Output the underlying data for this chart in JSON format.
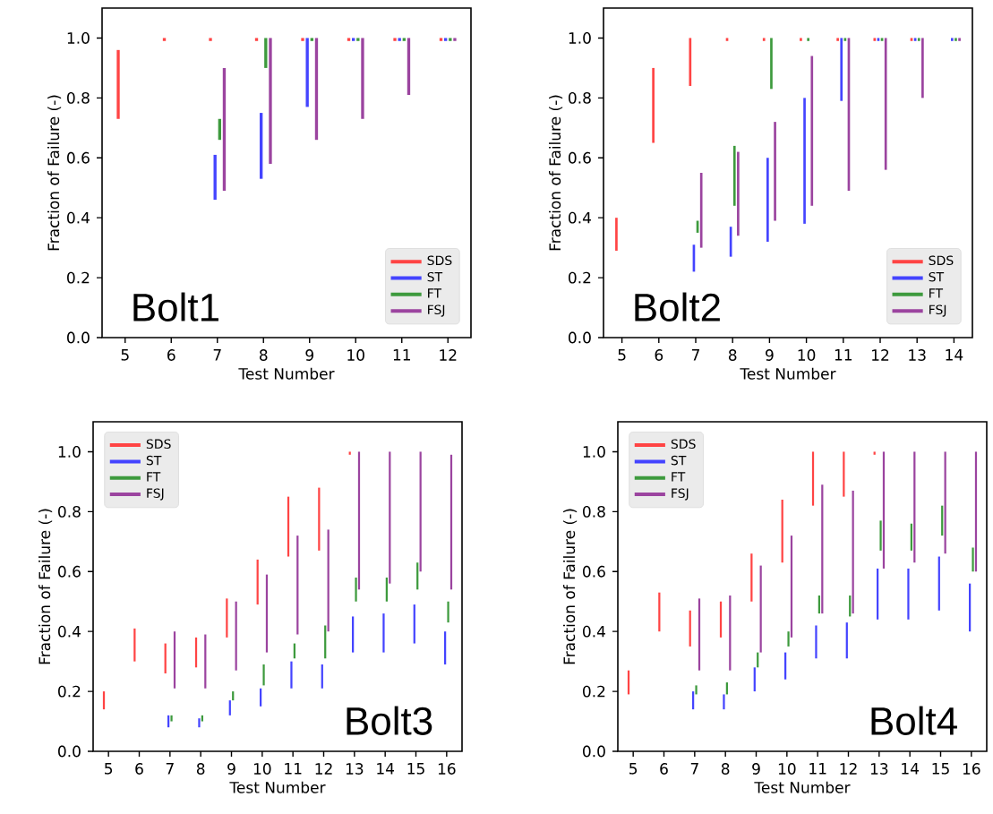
{
  "chart_data": [
    {
      "type": "bar",
      "xlabel": "Test Number",
      "ylabel": "Fraction of Failure (-)",
      "annotations": [
        "Bolt1"
      ],
      "legend": "bottom right",
      "categories": [
        "5",
        "6",
        "7",
        "8",
        "9",
        "10",
        "11",
        "12"
      ],
      "ylim": [
        0,
        1.1
      ],
      "yticks": [
        {
          "value": 0,
          "label": "0.0"
        },
        {
          "value": 0.2,
          "label": "0.2"
        },
        {
          "value": 0.4,
          "label": "0.4"
        },
        {
          "value": 0.6,
          "label": "0.6"
        },
        {
          "value": 0.8,
          "label": "0.8"
        },
        {
          "value": 1,
          "label": "1.0"
        }
      ],
      "series": [
        {
          "name": "SDS",
          "color": "#ff4444",
          "base": [
            0.73,
            0.99,
            0.99,
            0.99,
            0.99,
            0.99,
            0.99,
            0.99
          ],
          "values": [
            0.23,
            0.01,
            0.01,
            0.01,
            0.01,
            0.01,
            0.01,
            0.01
          ]
        },
        {
          "name": "ST",
          "color": "#4444ff",
          "base": [
            null,
            null,
            0.46,
            0.53,
            0.77,
            0.99,
            0.99,
            0.99
          ],
          "values": [
            null,
            null,
            0.15,
            0.22,
            0.23,
            0.01,
            0.01,
            0.01
          ]
        },
        {
          "name": "FT",
          "color": "#3d9a3d",
          "base": [
            null,
            null,
            0.66,
            0.9,
            0.99,
            0.99,
            0.99,
            0.99
          ],
          "values": [
            null,
            null,
            0.07,
            0.1,
            0.01,
            0.01,
            0.01,
            0.01
          ]
        },
        {
          "name": "FSJ",
          "color": "#9b449f",
          "base": [
            null,
            null,
            0.49,
            0.58,
            0.66,
            0.73,
            0.81,
            0.99
          ],
          "values": [
            null,
            null,
            0.41,
            0.42,
            0.34,
            0.27,
            0.19,
            0.01
          ]
        }
      ]
    },
    {
      "type": "bar",
      "xlabel": "Test Number",
      "ylabel": "Fraction of Failure (-)",
      "annotations": [
        "Bolt2"
      ],
      "legend": "bottom right",
      "categories": [
        "5",
        "6",
        "7",
        "8",
        "9",
        "10",
        "11",
        "12",
        "13",
        "14"
      ],
      "ylim": [
        0,
        1.1
      ],
      "yticks": [
        {
          "value": 0,
          "label": "0.0"
        },
        {
          "value": 0.2,
          "label": "0.2"
        },
        {
          "value": 0.4,
          "label": "0.4"
        },
        {
          "value": 0.6,
          "label": "0.6"
        },
        {
          "value": 0.8,
          "label": "0.8"
        },
        {
          "value": 1,
          "label": "1.0"
        }
      ],
      "series": [
        {
          "name": "SDS",
          "color": "#ff4444",
          "base": [
            0.29,
            0.65,
            0.84,
            0.99,
            0.99,
            0.99,
            0.99,
            0.99,
            0.99,
            null
          ],
          "values": [
            0.11,
            0.25,
            0.16,
            0.01,
            0.01,
            0.01,
            0.01,
            0.01,
            0.01,
            null
          ]
        },
        {
          "name": "ST",
          "color": "#4444ff",
          "base": [
            null,
            null,
            0.22,
            0.27,
            0.32,
            0.38,
            0.79,
            0.99,
            0.99,
            0.99
          ],
          "values": [
            null,
            null,
            0.09,
            0.1,
            0.28,
            0.42,
            0.21,
            0.01,
            0.01,
            0.01
          ]
        },
        {
          "name": "FT",
          "color": "#3d9a3d",
          "base": [
            null,
            null,
            0.35,
            0.44,
            0.83,
            0.99,
            0.99,
            0.99,
            0.99,
            0.99
          ],
          "values": [
            null,
            null,
            0.04,
            0.2,
            0.17,
            0.01,
            0.01,
            0.01,
            0.01,
            0.01
          ]
        },
        {
          "name": "FSJ",
          "color": "#9b449f",
          "base": [
            null,
            null,
            0.3,
            0.34,
            0.39,
            0.44,
            0.49,
            0.56,
            0.8,
            0.99
          ],
          "values": [
            null,
            null,
            0.25,
            0.28,
            0.33,
            0.5,
            0.51,
            0.44,
            0.2,
            0.01
          ]
        }
      ]
    },
    {
      "type": "bar",
      "xlabel": "Test Number",
      "ylabel": "Fraction of Failure (-)",
      "annotations": [
        "Bolt3"
      ],
      "legend": "top left",
      "categories": [
        "5",
        "6",
        "7",
        "8",
        "9",
        "10",
        "11",
        "12",
        "13",
        "14",
        "15",
        "16"
      ],
      "ylim": [
        0,
        1.1
      ],
      "yticks": [
        {
          "value": 0,
          "label": "0.0"
        },
        {
          "value": 0.2,
          "label": "0.2"
        },
        {
          "value": 0.4,
          "label": "0.4"
        },
        {
          "value": 0.6,
          "label": "0.6"
        },
        {
          "value": 0.8,
          "label": "0.8"
        },
        {
          "value": 1,
          "label": "1.0"
        }
      ],
      "series": [
        {
          "name": "SDS",
          "color": "#ff4444",
          "base": [
            0.14,
            0.3,
            0.26,
            0.28,
            0.38,
            0.49,
            0.65,
            0.67,
            0.99,
            null,
            null,
            null
          ],
          "values": [
            0.06,
            0.11,
            0.1,
            0.1,
            0.13,
            0.15,
            0.2,
            0.21,
            0.01,
            null,
            null,
            null
          ]
        },
        {
          "name": "ST",
          "color": "#4444ff",
          "base": [
            null,
            null,
            0.08,
            0.08,
            0.12,
            0.15,
            0.21,
            0.21,
            0.33,
            0.33,
            0.36,
            0.29
          ],
          "values": [
            null,
            null,
            0.04,
            0.03,
            0.05,
            0.06,
            0.09,
            0.08,
            0.12,
            0.13,
            0.13,
            0.11
          ]
        },
        {
          "name": "FT",
          "color": "#3d9a3d",
          "base": [
            null,
            null,
            0.1,
            0.1,
            0.17,
            0.22,
            0.31,
            0.31,
            0.5,
            0.5,
            0.54,
            0.43
          ],
          "values": [
            null,
            null,
            0.02,
            0.02,
            0.03,
            0.07,
            0.05,
            0.11,
            0.08,
            0.08,
            0.09,
            0.07
          ]
        },
        {
          "name": "FSJ",
          "color": "#9b449f",
          "base": [
            null,
            null,
            0.21,
            0.21,
            0.27,
            0.33,
            0.39,
            0.4,
            0.54,
            0.56,
            0.6,
            0.54
          ],
          "values": [
            null,
            null,
            0.19,
            0.18,
            0.23,
            0.26,
            0.33,
            0.34,
            0.46,
            0.44,
            0.4,
            0.45
          ]
        }
      ]
    },
    {
      "type": "bar",
      "xlabel": "Test Number",
      "ylabel": "Fraction of Failure (-)",
      "annotations": [
        "Bolt4"
      ],
      "legend": "top left",
      "categories": [
        "5",
        "6",
        "7",
        "8",
        "9",
        "10",
        "11",
        "12",
        "13",
        "14",
        "15",
        "16"
      ],
      "ylim": [
        0,
        1.1
      ],
      "yticks": [
        {
          "value": 0,
          "label": "0.0"
        },
        {
          "value": 0.2,
          "label": "0.2"
        },
        {
          "value": 0.4,
          "label": "0.4"
        },
        {
          "value": 0.6,
          "label": "0.6"
        },
        {
          "value": 0.8,
          "label": "0.8"
        },
        {
          "value": 1,
          "label": "1.0"
        }
      ],
      "series": [
        {
          "name": "SDS",
          "color": "#ff4444",
          "base": [
            0.19,
            0.4,
            0.35,
            0.38,
            0.5,
            0.63,
            0.82,
            0.85,
            0.99,
            null,
            null,
            null
          ],
          "values": [
            0.08,
            0.13,
            0.12,
            0.12,
            0.16,
            0.21,
            0.18,
            0.15,
            0.01,
            null,
            null,
            null
          ]
        },
        {
          "name": "ST",
          "color": "#4444ff",
          "base": [
            null,
            null,
            0.14,
            0.14,
            0.2,
            0.24,
            0.31,
            0.31,
            0.44,
            0.44,
            0.47,
            0.4
          ],
          "values": [
            null,
            null,
            0.06,
            0.05,
            0.08,
            0.09,
            0.11,
            0.12,
            0.17,
            0.17,
            0.18,
            0.16
          ]
        },
        {
          "name": "FT",
          "color": "#3d9a3d",
          "base": [
            null,
            null,
            0.19,
            0.19,
            0.28,
            0.35,
            0.46,
            0.45,
            0.67,
            0.67,
            0.72,
            0.6
          ],
          "values": [
            null,
            null,
            0.03,
            0.04,
            0.05,
            0.05,
            0.06,
            0.07,
            0.1,
            0.09,
            0.1,
            0.08
          ]
        },
        {
          "name": "FSJ",
          "color": "#9b449f",
          "base": [
            null,
            null,
            0.27,
            0.27,
            0.33,
            0.38,
            0.46,
            0.46,
            0.61,
            0.63,
            0.66,
            0.6
          ],
          "values": [
            null,
            null,
            0.24,
            0.25,
            0.29,
            0.34,
            0.43,
            0.41,
            0.39,
            0.37,
            0.34,
            0.4
          ]
        }
      ]
    }
  ]
}
